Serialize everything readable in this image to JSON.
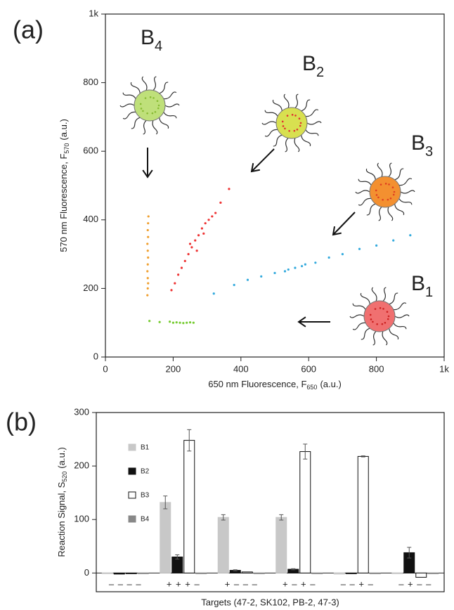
{
  "chart_data": [
    {
      "type": "scatter",
      "panel_label": "(a)",
      "x_label": {
        "text": "650 nm Fluorescence, F",
        "sub": "650",
        "unit": "(a.u.)"
      },
      "y_label": {
        "text": "570 nm Fluorescence, F",
        "sub": "570",
        "unit": "(a.u.)"
      },
      "xlim": [
        0,
        1000
      ],
      "ylim": [
        0,
        1000
      ],
      "xticks": [
        0,
        200,
        400,
        600,
        800,
        {
          "value": 1000,
          "label": "1k"
        }
      ],
      "yticks": [
        0,
        200,
        400,
        600,
        800,
        {
          "value": 1000,
          "label": "1k"
        }
      ],
      "annotations": [
        {
          "text": "B",
          "sub": "4"
        },
        {
          "text": "B",
          "sub": "2"
        },
        {
          "text": "B",
          "sub": "3"
        },
        {
          "text": "B",
          "sub": "1"
        }
      ],
      "series": [
        {
          "color": "#f0a030",
          "x": [
            127,
            126,
            125,
            126,
            124,
            125,
            126,
            125,
            124,
            125,
            126,
            125,
            124
          ],
          "y": [
            410,
            390,
            370,
            350,
            330,
            310,
            290,
            270,
            250,
            230,
            215,
            200,
            180
          ]
        },
        {
          "color": "#ee3333",
          "x": [
            195,
            205,
            215,
            225,
            235,
            245,
            255,
            265,
            275,
            285,
            295,
            305,
            315,
            325,
            250,
            270,
            290,
            340,
            365
          ],
          "y": [
            195,
            215,
            240,
            260,
            280,
            300,
            320,
            340,
            355,
            375,
            390,
            400,
            410,
            420,
            330,
            310,
            360,
            450,
            490
          ]
        },
        {
          "color": "#33aadd",
          "x": [
            320,
            380,
            420,
            460,
            500,
            530,
            560,
            580,
            620,
            660,
            700,
            750,
            800,
            850,
            900,
            540,
            590
          ],
          "y": [
            185,
            210,
            225,
            235,
            245,
            250,
            260,
            265,
            275,
            290,
            300,
            315,
            325,
            340,
            355,
            255,
            270
          ]
        },
        {
          "color": "#77cc33",
          "x": [
            190,
            200,
            210,
            220,
            230,
            240,
            250,
            260,
            130,
            160
          ],
          "y": [
            103,
            100,
            101,
            100,
            99,
            100,
            101,
            100,
            105,
            102
          ]
        }
      ]
    },
    {
      "type": "bar",
      "panel_label": "(b)",
      "x_label": "Targets (47-2, SK102, PB-2, 47-3)",
      "y_label": {
        "text": "Reaction Signal, S",
        "sub": "520",
        "unit": "(a.u.)"
      },
      "ylim": [
        -35,
        300
      ],
      "yticks": [
        0,
        100,
        200,
        300
      ],
      "categories": [
        "– – – –",
        "+ + + –",
        "+ – – –",
        "+ – + –",
        "– – + –",
        "– + – –"
      ],
      "series": [
        {
          "name": "B1",
          "color": "#c8c8c8",
          "edgecolor": "#c8c8c8",
          "values": [
            0,
            132,
            104,
            104,
            -2,
            -1
          ],
          "errors": [
            null,
            12,
            5,
            5,
            null,
            null
          ]
        },
        {
          "name": "B2",
          "color": "#111111",
          "edgecolor": "#111111",
          "values": [
            -2,
            30,
            5,
            7,
            -1,
            38
          ],
          "errors": [
            null,
            4,
            1,
            1,
            null,
            10
          ]
        },
        {
          "name": "B3",
          "color": "#ffffff",
          "edgecolor": "#111111",
          "values": [
            -1,
            248,
            2,
            227,
            218,
            -8
          ],
          "errors": [
            null,
            20,
            null,
            14,
            1,
            null
          ]
        },
        {
          "name": "B4",
          "color": "#888888",
          "edgecolor": "#888888",
          "values": [
            0,
            0,
            0,
            0,
            0,
            0
          ],
          "errors": [
            null,
            null,
            null,
            null,
            null,
            null
          ]
        }
      ]
    }
  ]
}
